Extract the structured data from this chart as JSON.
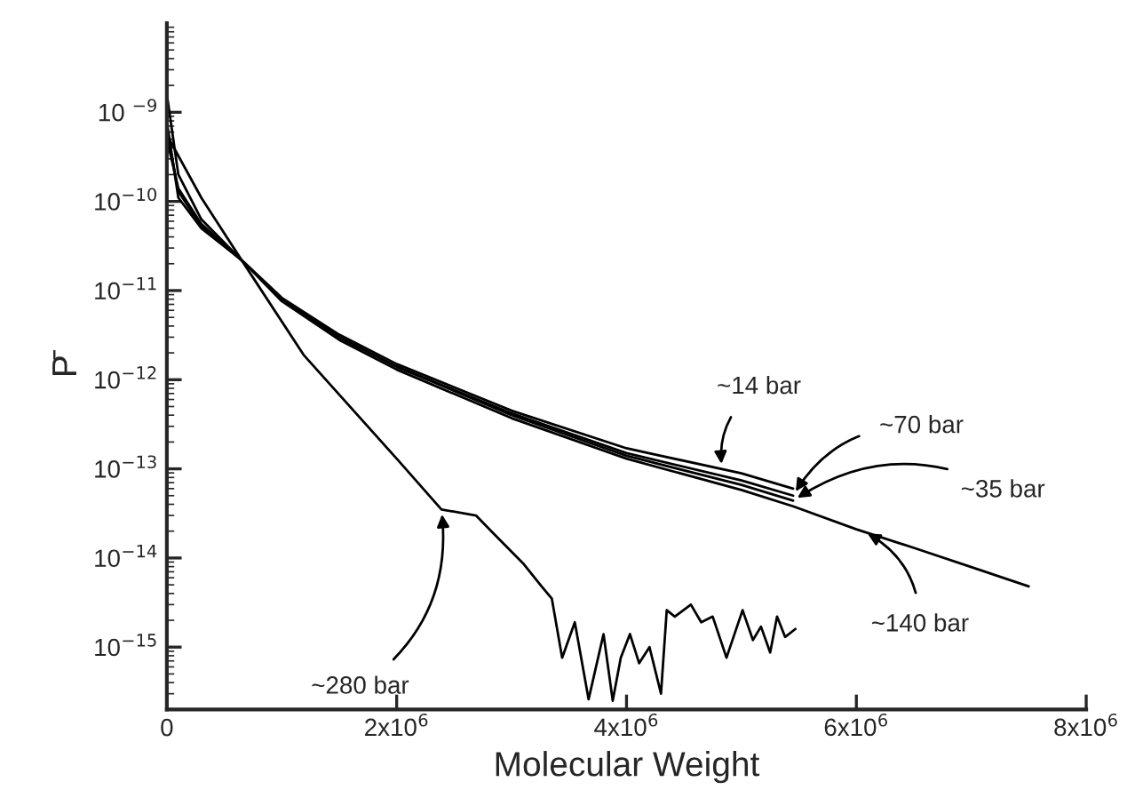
{
  "chart_data": {
    "type": "line",
    "xlabel": "Molecular Weight",
    "ylabel": "P̄",
    "log": "y",
    "grid": false,
    "legend": false,
    "marker": "none",
    "line_style": "solid",
    "xlim": [
      0,
      8000000
    ],
    "xticks": [
      0,
      {
        "value": 2000000,
        "label": "2x10$^{6}$"
      },
      {
        "value": 4000000,
        "label": "4x10$^{6}$"
      },
      {
        "value": 6000000,
        "label": "6x10$^{6}$"
      },
      {
        "value": 8000000,
        "label": "8x10$^{6}$"
      }
    ],
    "ylim": [
      2e-16,
      1e-08
    ],
    "yticks": [
      {
        "value": 1e-15,
        "label": "10$^{−15}$"
      },
      {
        "value": 1e-14,
        "label": "10$^{−14}$"
      },
      {
        "value": 1e-13,
        "label": "10$^{−13}$"
      },
      {
        "value": 1e-12,
        "label": "10$^{−12}$"
      },
      {
        "value": 1e-11,
        "label": "10$^{−11}$"
      },
      {
        "value": 1e-10,
        "label": "10$^{−10}$"
      },
      {
        "value": 1e-09,
        "label": "10 $^{−9}$"
      }
    ],
    "series": [
      {
        "color": "#000000",
        "x": [
          0,
          100000,
          300000,
          650000,
          1000000,
          1500000,
          2000000,
          3000000,
          4000000,
          5000000,
          5450000
        ],
        "values": [
          7.9e-10,
          1.1e-10,
          5e-11,
          2.2e-11,
          8.3e-12,
          3.2e-12,
          1.5e-12,
          4.5e-13,
          1.7e-13,
          8.9e-14,
          6e-14
        ]
      },
      {
        "color": "#000000",
        "x": [
          0,
          100000,
          300000,
          650000,
          1000000,
          1500000,
          2000000,
          3000000,
          4000000,
          5000000,
          5450000
        ],
        "values": [
          5e-10,
          1.4e-10,
          5.6e-11,
          2.2e-11,
          7.9e-12,
          3e-12,
          1.4e-12,
          4.2e-13,
          1.5e-13,
          7.4e-14,
          5e-14
        ]
      },
      {
        "color": "#000000",
        "x": [
          0,
          100000,
          300000,
          650000,
          1000000,
          1500000,
          2000000,
          3000000,
          4000000,
          5000000,
          5450000
        ],
        "values": [
          6.3e-10,
          1.3e-10,
          5.2e-11,
          2.2e-11,
          7.9e-12,
          3e-12,
          1.4e-12,
          4e-13,
          1.4e-13,
          6.6e-14,
          4.4e-14
        ]
      },
      {
        "color": "#000000",
        "x": [
          0,
          100000,
          300000,
          650000,
          1000000,
          1500000,
          2000000,
          3000000,
          4000000,
          5000000,
          5450000,
          6000000,
          6500000,
          7000000,
          7500000
        ],
        "values": [
          1.6e-09,
          2e-10,
          6.3e-11,
          2.2e-11,
          7.6e-12,
          2.8e-12,
          1.3e-12,
          3.7e-13,
          1.3e-13,
          5.8e-14,
          3.8e-14,
          2.1e-14,
          1.3e-14,
          7.9e-15,
          4.8e-15
        ]
      },
      {
        "color": "#000000",
        "x": [
          0,
          300000,
          650000,
          1190000,
          2000000,
          2390000,
          2690000,
          2840000,
          3100000,
          3250000,
          3350000,
          3440000,
          3550000,
          3670000,
          3800000,
          3880000,
          3950000,
          4030000,
          4110000,
          4200000,
          4300000,
          4350000,
          4420000,
          4560000,
          4650000,
          4750000,
          4870000,
          5010000,
          5100000,
          5170000,
          5250000,
          5310000,
          5380000,
          5470000
        ],
        "values": [
          5.6e-10,
          1.1e-10,
          2.2e-11,
          1.9e-12,
          1.3e-13,
          3.5e-14,
          3e-14,
          1.9e-14,
          8.7e-15,
          5e-15,
          3.5e-15,
          7.6e-16,
          1.9e-15,
          2.6e-16,
          1.4e-15,
          2.5e-16,
          7.6e-16,
          1.4e-15,
          6.6e-16,
          1e-15,
          3e-16,
          2.6e-15,
          2.2e-15,
          3e-15,
          1.9e-15,
          2.2e-15,
          7.6e-16,
          2.6e-15,
          1.2e-15,
          1.7e-15,
          8.7e-16,
          2.2e-15,
          1.3e-15,
          1.6e-15
        ]
      }
    ],
    "annotations": [
      {
        "text": "~14 bar",
        "x": 4830000,
        "y": 1e-13
      },
      {
        "text": "~70 bar",
        "x": 5450000,
        "y": 5e-14
      },
      {
        "text": "~35 bar",
        "x": 5450000,
        "y": 4.4e-14
      },
      {
        "text": "~140 bar",
        "x": 6060000,
        "y": 2e-14
      },
      {
        "text": "~280 bar",
        "x": 2390000,
        "y": 3.5e-14
      }
    ]
  }
}
